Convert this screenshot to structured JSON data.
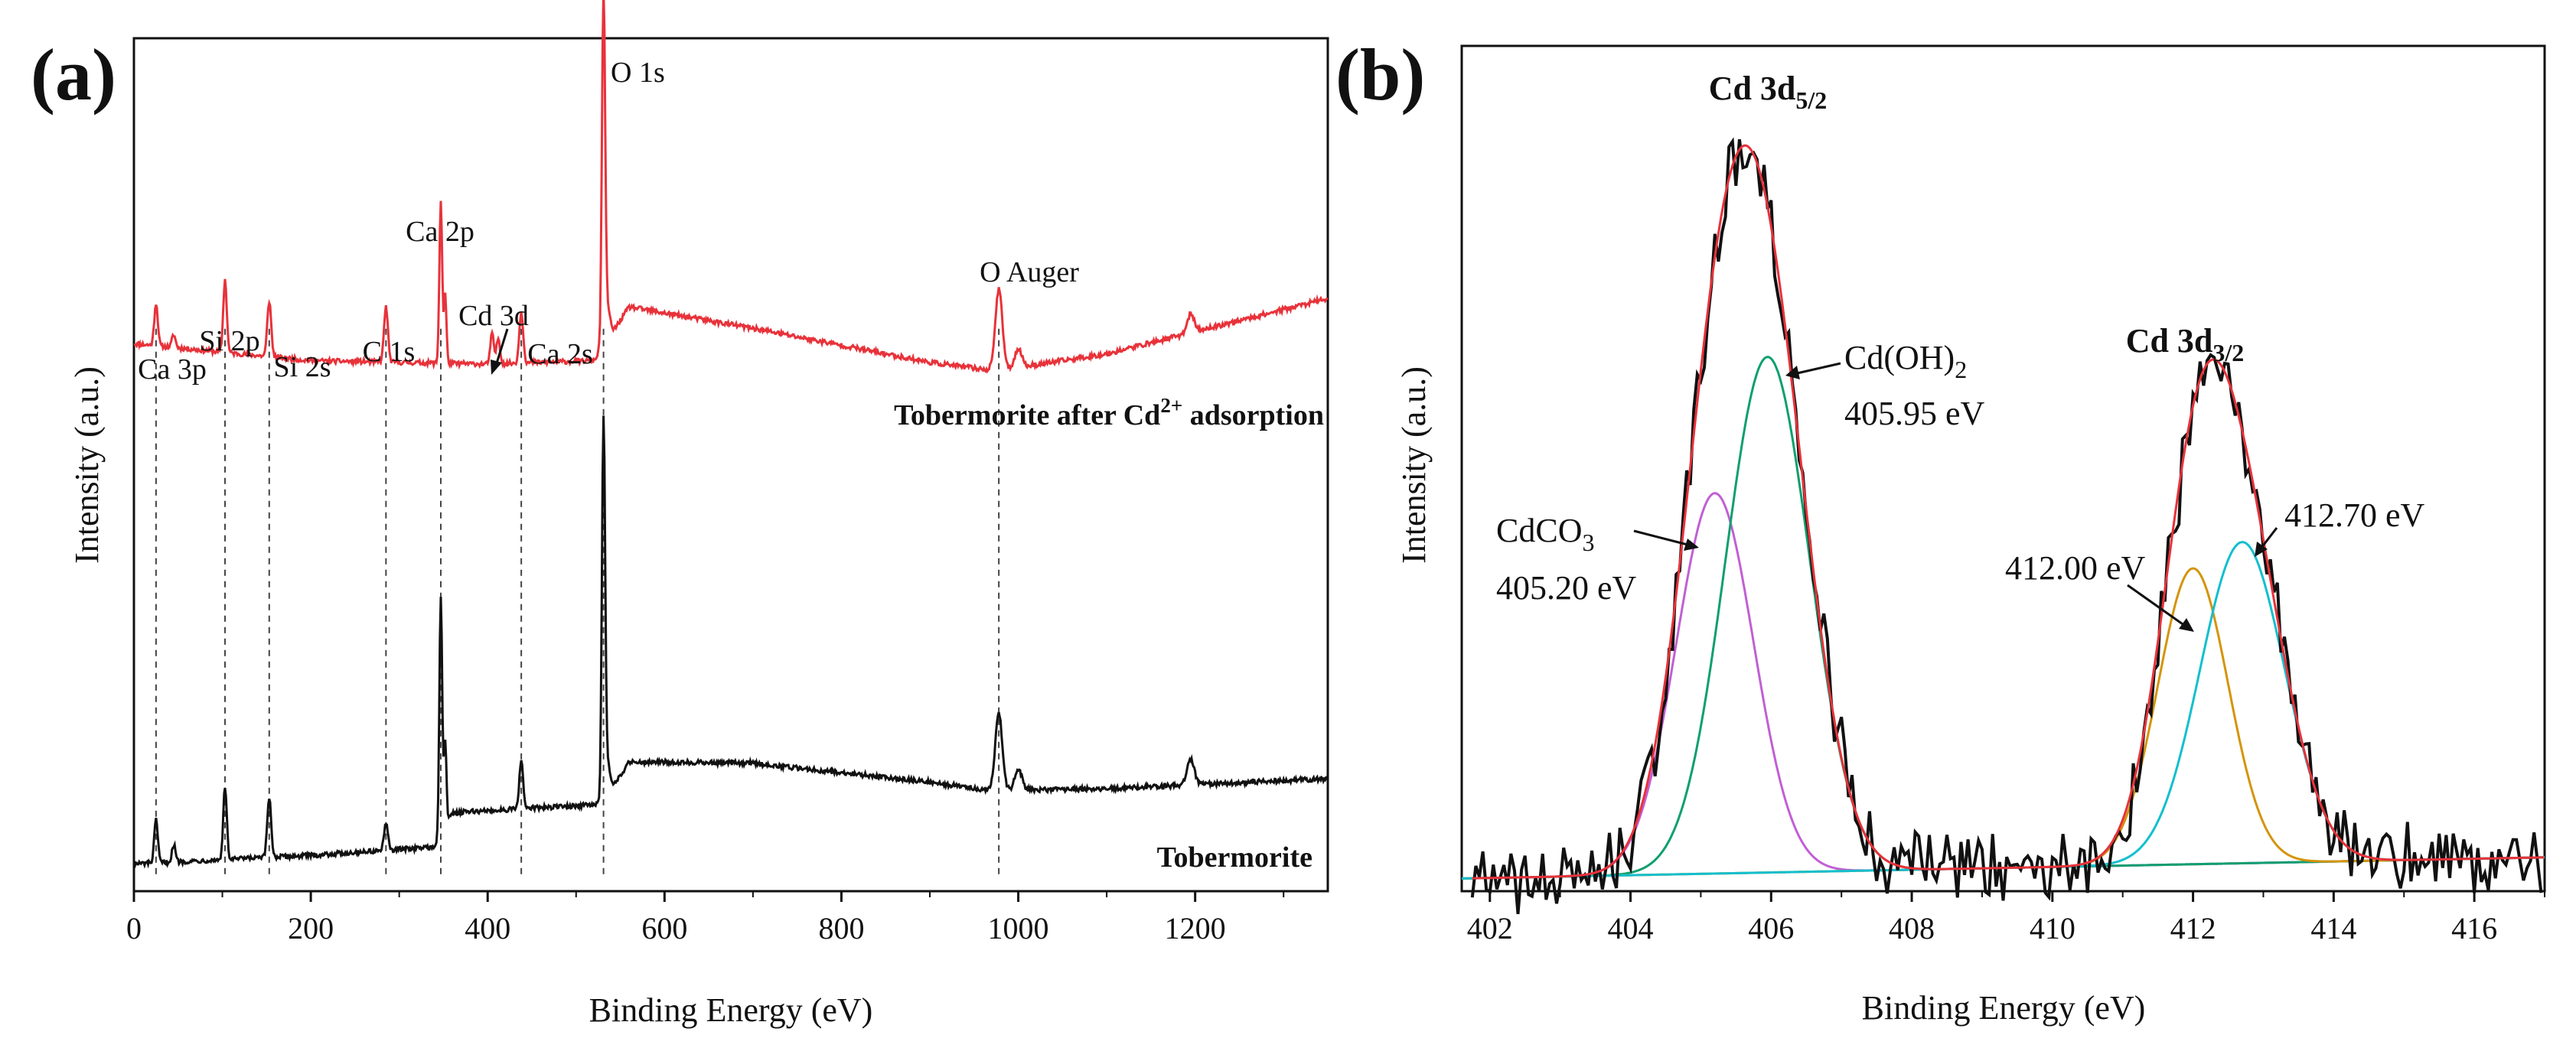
{
  "chart_data": [
    {
      "panel": "(a)",
      "type": "line",
      "title": "",
      "xlabel": "Binding Energy (eV)",
      "ylabel": "Intensity (a.u.)",
      "xlim": [
        0,
        1350
      ],
      "ylim": [
        0,
        100
      ],
      "xticks": [
        0,
        200,
        400,
        600,
        800,
        1000,
        1200
      ],
      "grid": false,
      "legend": "none",
      "series": [
        {
          "name": "Tobermorite after Cd2+ adsorption",
          "label_main": "Tobermorite after Cd",
          "label_sup": "2+",
          "label_tail": " adsorption",
          "color": "#e8323a",
          "baseline": [
            [
              0,
              64.2
            ],
            [
              200,
              62.2
            ],
            [
              400,
              61.8
            ],
            [
              520,
              62.2
            ],
            [
              560,
              68.5
            ],
            [
              700,
              66
            ],
            [
              900,
              62
            ],
            [
              975,
              61
            ],
            [
              1100,
              63
            ],
            [
              1350,
              69.5
            ]
          ],
          "peaks": [
            [
              25,
              5,
              2
            ],
            [
              45,
              1.5,
              2
            ],
            [
              103,
              8.5,
              2
            ],
            [
              153,
              6.5,
              2.2
            ],
            [
              285,
              6.5,
              2.2
            ],
            [
              347,
              19,
              1.6
            ],
            [
              352,
              8,
              1.4
            ],
            [
              405,
              3.5,
              2
            ],
            [
              412,
              3,
              2
            ],
            [
              438,
              6,
              2.2
            ],
            [
              531,
              40,
              1.8
            ],
            [
              535,
              4,
              3
            ],
            [
              978,
              9.5,
              4
            ],
            [
              1000,
              2.2,
              4
            ],
            [
              1195,
              2.2,
              4
            ]
          ]
        },
        {
          "name": "Tobermorite",
          "label_main": "Tobermorite",
          "color": "#111111",
          "baseline": [
            [
              0,
              3.2
            ],
            [
              200,
              4.2
            ],
            [
              340,
              5.2
            ],
            [
              360,
              9.2
            ],
            [
              530,
              10.2
            ],
            [
              560,
              15.2
            ],
            [
              700,
              15
            ],
            [
              900,
              12.8
            ],
            [
              970,
              11.8
            ],
            [
              1100,
              12
            ],
            [
              1350,
              13.2
            ]
          ],
          "peaks": [
            [
              25,
              5,
              2
            ],
            [
              45,
              2,
              2
            ],
            [
              103,
              8.5,
              2
            ],
            [
              153,
              7,
              2.2
            ],
            [
              285,
              3,
              2.2
            ],
            [
              347,
              28,
              1.6
            ],
            [
              352,
              10,
              1.4
            ],
            [
              438,
              5.5,
              2.2
            ],
            [
              531,
              44,
              1.8
            ],
            [
              535,
              4,
              3
            ],
            [
              978,
              9,
              4
            ],
            [
              1000,
              2.5,
              4
            ],
            [
              1195,
              3,
              4
            ]
          ]
        }
      ],
      "annotations": [
        {
          "text": "Ca 3p",
          "x": 25
        },
        {
          "text": "Si 2p",
          "x": 103
        },
        {
          "text": "Si 2s",
          "x": 153
        },
        {
          "text": "C 1s",
          "x": 285
        },
        {
          "text": "Ca 2p",
          "x": 347
        },
        {
          "text": "Cd 3d",
          "x": 408
        },
        {
          "text": "Ca 2s",
          "x": 438
        },
        {
          "text": "O 1s",
          "x": 531
        },
        {
          "text": "O Auger",
          "x": 978
        }
      ],
      "reference_lines_x": [
        25,
        103,
        153,
        285,
        347,
        438,
        531,
        978
      ]
    },
    {
      "panel": "(b)",
      "type": "line",
      "title": "",
      "xlabel": "Binding Energy (eV)",
      "ylabel": "Intensity (a.u.)",
      "xlim": [
        401.6,
        417
      ],
      "ylim": [
        0,
        100
      ],
      "xticks": [
        402,
        404,
        406,
        408,
        410,
        412,
        414,
        416
      ],
      "grid": false,
      "legend": "none",
      "background": [
        [
          401.6,
          1.5
        ],
        [
          417,
          4
        ]
      ],
      "components": [
        {
          "name": "CdCO3",
          "label_main": "CdCO",
          "label_sub": "3",
          "energy_label": "405.20 eV",
          "center": 405.2,
          "height": 45,
          "sigma": 0.55,
          "color": "#c15fd4"
        },
        {
          "name": "Cd(OH)2",
          "label_main": "Cd(OH)",
          "label_sub": "2",
          "energy_label": "405.95 eV",
          "center": 405.95,
          "height": 61,
          "sigma": 0.6,
          "color": "#0e9f6e"
        },
        {
          "name": "412.00 eV",
          "energy_label": "412.00 eV",
          "center": 412.0,
          "height": 35,
          "sigma": 0.5,
          "color": "#d4940b"
        },
        {
          "name": "412.70 eV",
          "energy_label": "412.70 eV",
          "center": 412.7,
          "height": 38,
          "sigma": 0.6,
          "color": "#12bfce"
        }
      ],
      "main_labels": [
        {
          "main": "Cd 3d",
          "sub": "5/2",
          "x": 405.6
        },
        {
          "main": "Cd 3d",
          "sub": "3/2",
          "x": 412.3
        }
      ],
      "fit_color": "#e8323a",
      "raw_color": "#111111"
    }
  ]
}
